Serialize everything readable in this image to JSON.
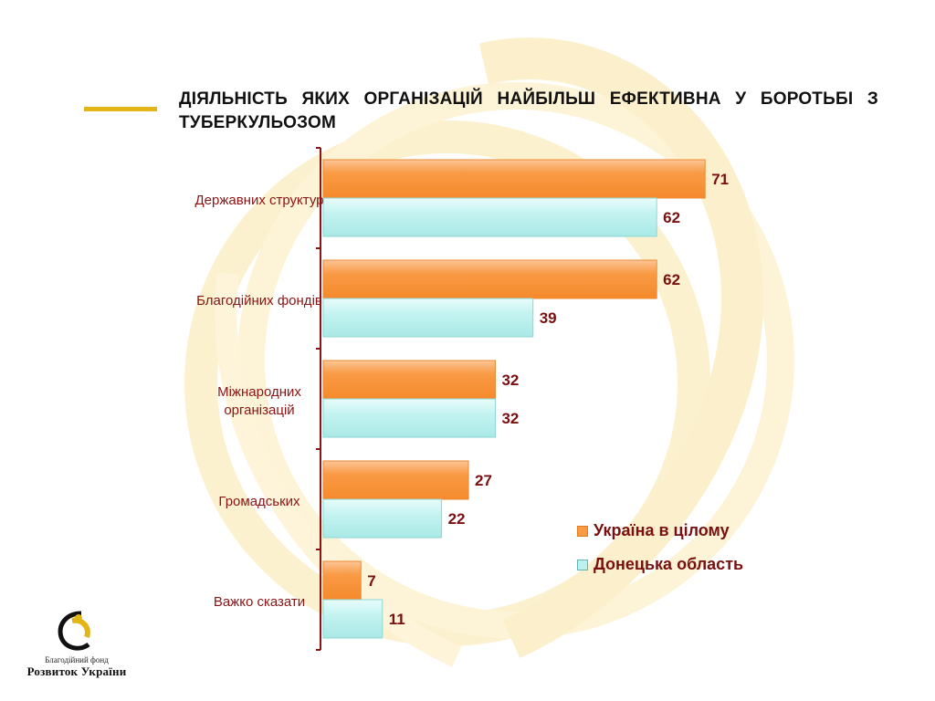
{
  "slide": {
    "title": "ДІЯЛЬНІСТЬ ЯКИХ ОРГАНІЗАЦІЙ НАЙБІЛЬШ ЕФЕКТИВНА У БОРОТЬБІ З ТУБЕРКУЛЬОЗОМ"
  },
  "logo": {
    "line1": "Благодійний фонд",
    "line2": "Розвиток України"
  },
  "colors": {
    "series1": "#f99a45",
    "series2": "#bdf1ef",
    "accent": "#e3b516",
    "text": "#7a0f0f"
  },
  "chart_data": {
    "type": "bar",
    "orientation": "horizontal",
    "categories": [
      [
        "Державних структур"
      ],
      [
        "Благодійних фондів"
      ],
      [
        "Міжнародних",
        "організацій"
      ],
      [
        "Громадських"
      ],
      [
        "Важко сказати"
      ]
    ],
    "series": [
      {
        "name": "Україна в цілому",
        "values": [
          71,
          62,
          32,
          27,
          7
        ]
      },
      {
        "name": "Донецька область",
        "values": [
          62,
          39,
          32,
          22,
          11
        ]
      }
    ],
    "legend_position": "right",
    "data_labels": true,
    "grid": false
  }
}
